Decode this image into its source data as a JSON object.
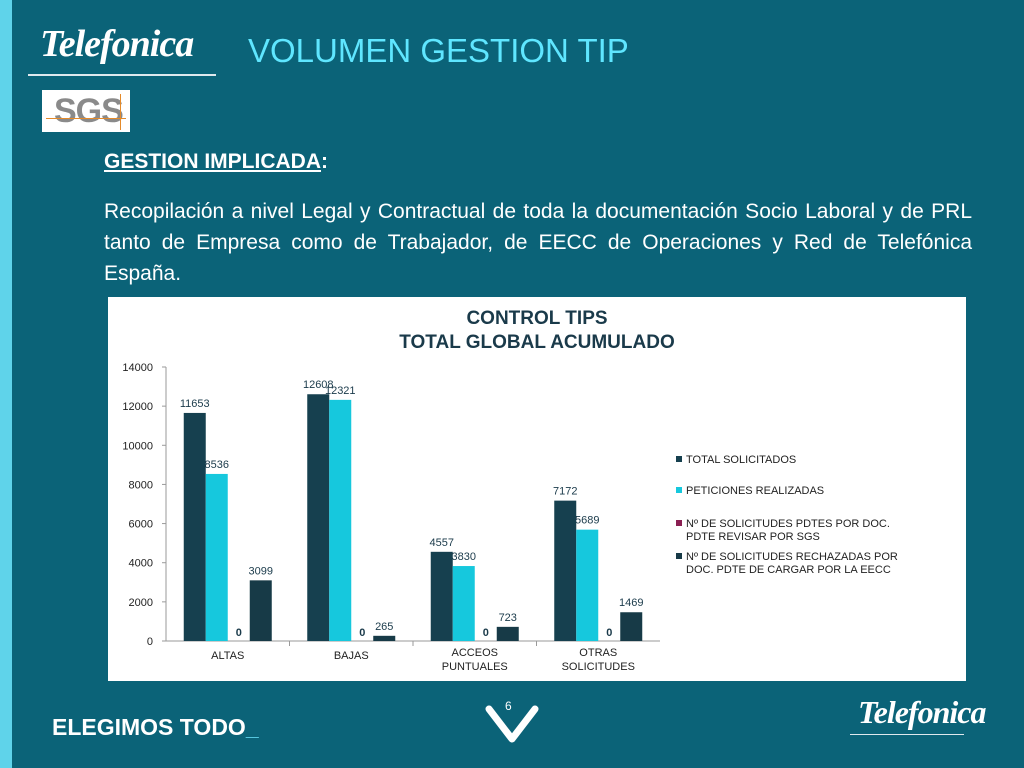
{
  "header": {
    "logo_text": "Telefonica",
    "sgs_logo_text": "SGS",
    "title": "VOLUMEN GESTION TIP"
  },
  "section": {
    "label": "GESTION IMPLICADA",
    "label_suffix": ":",
    "body": "Recopilación a nivel Legal y Contractual de toda la documentación Socio Laboral y de PRL tanto  de Empresa como de Trabajador,  de EECC de Operaciones y Red de Telefónica España."
  },
  "footer": {
    "slogan": "ELEGIMOS TODO",
    "slogan_suffix": "_",
    "page_number": "6",
    "logo_text": "Telefonica"
  },
  "colors": {
    "background": "#0b6378",
    "accent": "#5fd3ea",
    "series": [
      "#16404f",
      "#16c8dd",
      "#8a1f52",
      "#173a47"
    ]
  },
  "chart_data": {
    "type": "bar",
    "title": "CONTROL TIPS",
    "subtitle": "TOTAL GLOBAL ACUMULADO",
    "categories": [
      "ALTAS",
      "BAJAS",
      "ACCEOS PUNTUALES",
      "OTRAS SOLICITUDES"
    ],
    "ylim": [
      0,
      14000
    ],
    "yticks": [
      0,
      2000,
      4000,
      6000,
      8000,
      10000,
      12000,
      14000
    ],
    "grid": false,
    "legend_position": "right",
    "series": [
      {
        "name": "TOTAL SOLICITADOS",
        "values": [
          11653,
          12608,
          4557,
          7172
        ]
      },
      {
        "name": "PETICIONES REALIZADAS",
        "values": [
          8536,
          12321,
          3830,
          5689
        ]
      },
      {
        "name": "Nº DE SOLICITUDES PDTES POR DOC. PDTE REVISAR POR SGS",
        "values": [
          0,
          0,
          0,
          0
        ]
      },
      {
        "name": "Nº DE SOLICITUDES RECHAZADAS POR DOC. PDTE DE CARGAR POR LA EECC",
        "values": [
          3099,
          265,
          723,
          1469
        ]
      }
    ]
  }
}
